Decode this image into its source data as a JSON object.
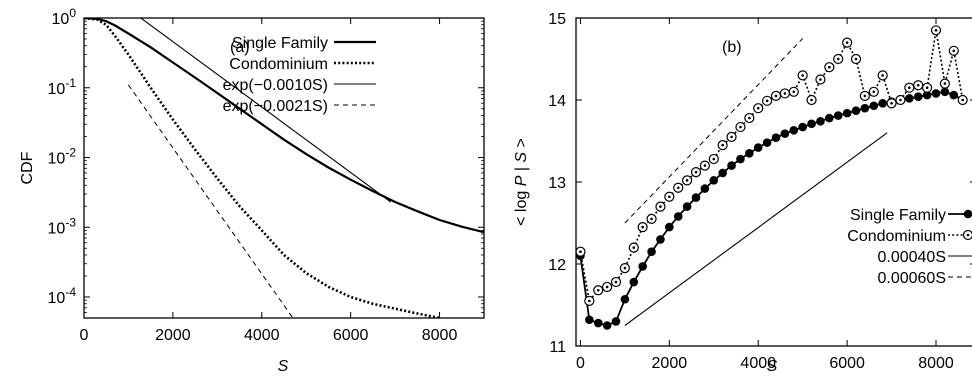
{
  "chart_data": [
    {
      "type": "line",
      "panel_label": "(a)",
      "xlabel": "S",
      "ylabel": "CDF",
      "xlim": [
        0,
        9000
      ],
      "ylim": [
        5e-05,
        1
      ],
      "yscale": "log",
      "grid": false,
      "legend_position": "top-right",
      "x_ticks": [
        {
          "value": 0,
          "label": "0"
        },
        {
          "value": 2000,
          "label": "2000"
        },
        {
          "value": 4000,
          "label": "4000"
        },
        {
          "value": 6000,
          "label": "6000"
        },
        {
          "value": 8000,
          "label": "8000"
        }
      ],
      "y_ticks": [
        {
          "value": 1,
          "base": "10",
          "exp": "0"
        },
        {
          "value": 0.1,
          "base": "10",
          "exp": "-1"
        },
        {
          "value": 0.01,
          "base": "10",
          "exp": "-2"
        },
        {
          "value": 0.001,
          "base": "10",
          "exp": "-3"
        },
        {
          "value": 0.0001,
          "base": "10",
          "exp": "-4"
        }
      ],
      "series": [
        {
          "name": "Single Family",
          "style": "thick-solid",
          "x": [
            0,
            300,
            500,
            700,
            1000,
            1500,
            2000,
            2500,
            3000,
            3500,
            4000,
            4500,
            5000,
            5500,
            6000,
            6500,
            7000,
            7500,
            8000,
            8500,
            9000
          ],
          "y": [
            1.0,
            0.97,
            0.9,
            0.78,
            0.6,
            0.38,
            0.23,
            0.14,
            0.084,
            0.05,
            0.03,
            0.018,
            0.0112,
            0.0072,
            0.0048,
            0.0033,
            0.0023,
            0.0017,
            0.00127,
            0.00102,
            0.00085
          ]
        },
        {
          "name": "Condominium",
          "style": "thick-dotted",
          "x": [
            0,
            300,
            500,
            700,
            1000,
            1500,
            2000,
            2500,
            3000,
            3500,
            4000,
            4500,
            5000,
            5500,
            6000,
            6500,
            7000,
            7500,
            8000
          ],
          "y": [
            1.0,
            0.95,
            0.8,
            0.55,
            0.3,
            0.1,
            0.035,
            0.013,
            0.005,
            0.002,
            0.0009,
            0.0004,
            0.00022,
            0.00014,
            0.0001,
            8e-05,
            6.8e-05,
            5.8e-05,
            5e-05
          ]
        },
        {
          "name": "exp(−0.0010S)",
          "style": "thin-solid",
          "x": [
            1000,
            6900
          ],
          "y": [
            1.35,
            0.0023
          ]
        },
        {
          "name": "exp(−0.0021S)",
          "style": "thin-dashed",
          "x": [
            1000,
            4700
          ],
          "y": [
            0.11,
            5e-05
          ]
        }
      ]
    },
    {
      "type": "line",
      "panel_label": "(b)",
      "xlabel": "S",
      "ylabel": "< log P | S >",
      "xlim": [
        -100,
        8900
      ],
      "ylim": [
        11,
        15
      ],
      "grid": false,
      "legend_position": "bottom-right",
      "x_ticks": [
        {
          "value": 0,
          "label": "0"
        },
        {
          "value": 2000,
          "label": "2000"
        },
        {
          "value": 4000,
          "label": "4000"
        },
        {
          "value": 6000,
          "label": "6000"
        },
        {
          "value": 8000,
          "label": "8000"
        }
      ],
      "y_ticks": [
        {
          "value": 11,
          "label": "11"
        },
        {
          "value": 12,
          "label": "12"
        },
        {
          "value": 13,
          "label": "13"
        },
        {
          "value": 14,
          "label": "14"
        },
        {
          "value": 15,
          "label": "15"
        }
      ],
      "series": [
        {
          "name": "Single Family",
          "style": "solid-filled-circles",
          "x": [
            0,
            200,
            400,
            600,
            800,
            1000,
            1200,
            1400,
            1600,
            1800,
            2000,
            2200,
            2400,
            2600,
            2800,
            3000,
            3200,
            3400,
            3600,
            3800,
            4000,
            4200,
            4400,
            4600,
            4800,
            5000,
            5200,
            5400,
            5600,
            5800,
            6000,
            6200,
            6400,
            6600,
            6800,
            7000,
            7200,
            7400,
            7600,
            7800,
            8000,
            8200,
            8400,
            8600
          ],
          "y": [
            12.1,
            11.32,
            11.28,
            11.25,
            11.3,
            11.57,
            11.78,
            11.97,
            12.15,
            12.3,
            12.45,
            12.58,
            12.7,
            12.81,
            12.92,
            13.02,
            13.11,
            13.2,
            13.28,
            13.35,
            13.42,
            13.48,
            13.54,
            13.59,
            13.63,
            13.67,
            13.71,
            13.74,
            13.78,
            13.81,
            13.84,
            13.87,
            13.9,
            13.93,
            13.96,
            13.98,
            14.0,
            14.02,
            14.04,
            14.06,
            14.08,
            14.1,
            14.06,
            14.0
          ]
        },
        {
          "name": "Condominium",
          "style": "dotted-open-circles",
          "x": [
            0,
            200,
            400,
            600,
            800,
            1000,
            1200,
            1400,
            1600,
            1800,
            2000,
            2200,
            2400,
            2600,
            2800,
            3000,
            3200,
            3400,
            3600,
            3800,
            4000,
            4200,
            4400,
            4600,
            4800,
            5000,
            5200,
            5400,
            5600,
            5800,
            6000,
            6200,
            6400,
            6600,
            6800,
            7000,
            7200,
            7400,
            7600,
            7800,
            8000,
            8200,
            8400,
            8600
          ],
          "y": [
            12.15,
            11.55,
            11.68,
            11.72,
            11.78,
            11.95,
            12.2,
            12.45,
            12.55,
            12.7,
            12.82,
            12.93,
            13.02,
            13.12,
            13.2,
            13.28,
            13.45,
            13.55,
            13.67,
            13.78,
            13.9,
            13.99,
            14.05,
            14.08,
            14.1,
            14.3,
            14.0,
            14.25,
            14.4,
            14.5,
            14.7,
            14.5,
            14.05,
            14.1,
            14.3,
            13.96,
            14.0,
            14.15,
            14.18,
            14.15,
            14.85,
            14.2,
            14.6,
            14.0
          ]
        },
        {
          "name": "0.00040S",
          "style": "thin-solid",
          "x": [
            1000,
            6900
          ],
          "y": [
            11.25,
            13.6
          ]
        },
        {
          "name": "0.00060S",
          "style": "thin-dashed",
          "x": [
            1000,
            5000
          ],
          "y": [
            12.5,
            14.75
          ]
        }
      ]
    }
  ]
}
